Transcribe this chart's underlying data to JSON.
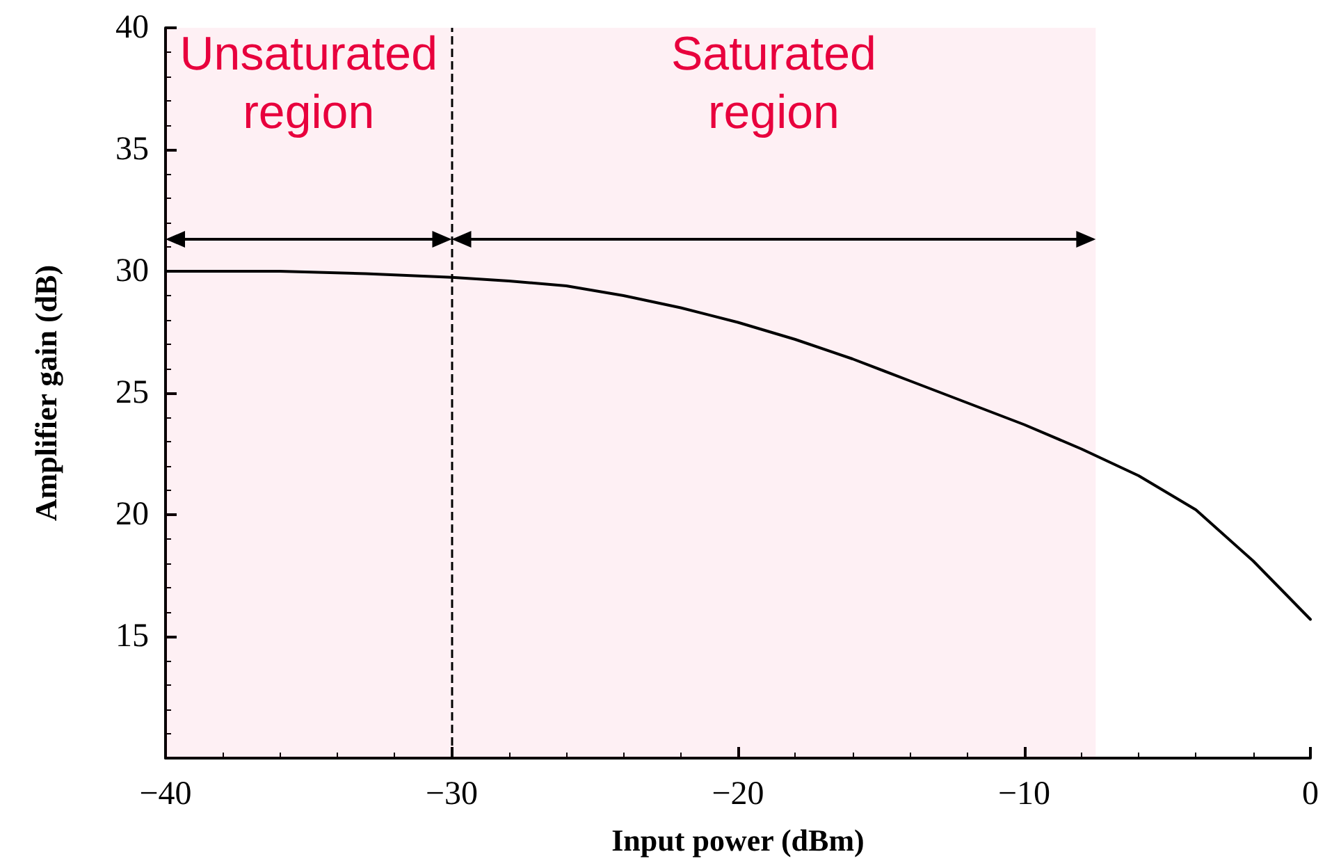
{
  "chart_data": {
    "type": "line",
    "xlabel": "Input power (dBm)",
    "ylabel": "Amplifier gain (dB)",
    "x": [
      -40,
      -36,
      -33,
      -30,
      -28,
      -26,
      -24,
      -22,
      -20,
      -18,
      -16,
      -14,
      -12,
      -10,
      -8,
      -6,
      -4,
      -2,
      0
    ],
    "series": [
      {
        "color": "#000000",
        "values": [
          30,
          30,
          29.9,
          29.75,
          29.6,
          29.4,
          29,
          28.5,
          27.9,
          27.2,
          26.4,
          25.5,
          24.6,
          23.7,
          22.7,
          21.6,
          20.2,
          18.1,
          15.7
        ]
      }
    ],
    "xlim": [
      -40,
      0
    ],
    "xticks": [
      {
        "value": -40,
        "label": "−40"
      },
      {
        "value": -30,
        "label": "−30"
      },
      {
        "value": -20,
        "label": "−20"
      },
      {
        "value": -10,
        "label": "−10"
      },
      0
    ],
    "ylim": [
      10,
      40
    ],
    "yticks": [
      15,
      20,
      25,
      30,
      35,
      40
    ],
    "ref_lines": [
      {
        "axis": "x",
        "value": -30,
        "line_style": "dashed"
      }
    ],
    "bands": [
      {
        "axis": "x",
        "from": -40,
        "to": -30,
        "label": "Unsaturated region",
        "color": "#e8003d"
      },
      {
        "axis": "x",
        "from": -30,
        "to": -7.5,
        "label": "Saturated region",
        "color": "#e8003d"
      }
    ],
    "grid": false,
    "marker": "none",
    "line_style": "solid"
  }
}
